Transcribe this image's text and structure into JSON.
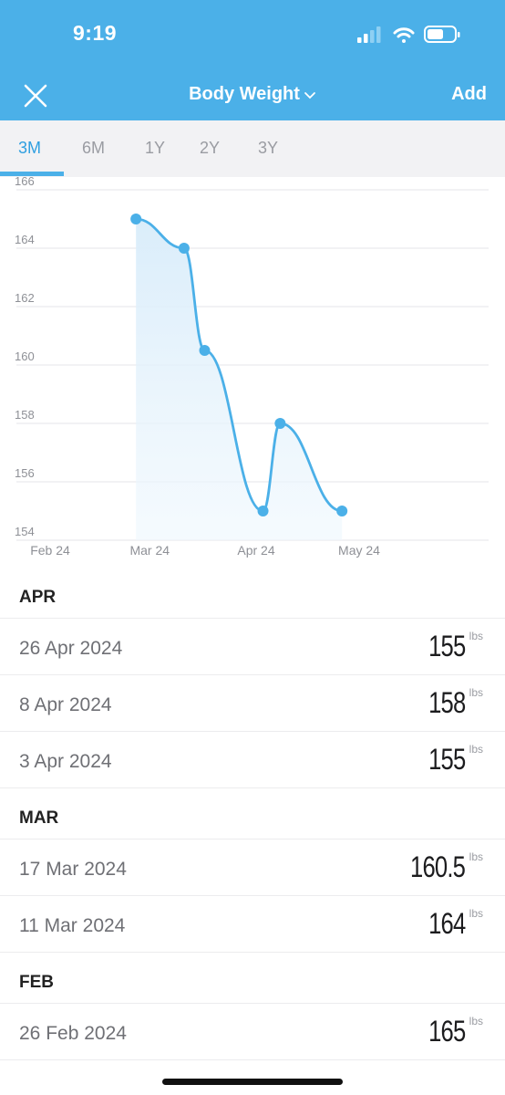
{
  "status_bar": {
    "time": "9:19"
  },
  "nav": {
    "title": "Body Weight",
    "add_label": "Add",
    "close_icon": "close-icon",
    "title_chevron": "chevron-down-icon"
  },
  "tabs": [
    {
      "label": "3M",
      "active": true
    },
    {
      "label": "6M",
      "active": false
    },
    {
      "label": "1Y",
      "active": false
    },
    {
      "label": "2Y",
      "active": false
    },
    {
      "label": "3Y",
      "active": false
    }
  ],
  "chart_data": {
    "type": "area",
    "x_ticks": [
      "Feb 24",
      "Mar 24",
      "Apr 24",
      "May 24"
    ],
    "y_ticks": [
      154,
      156,
      158,
      160,
      162,
      164,
      166
    ],
    "ylim": [
      154,
      166
    ],
    "grid": true,
    "color": "#4bb0e8",
    "points": [
      {
        "date": "26 Feb 2024",
        "value": 165
      },
      {
        "date": "11 Mar 2024",
        "value": 164
      },
      {
        "date": "17 Mar 2024",
        "value": 160.5
      },
      {
        "date": "3 Apr 2024",
        "value": 155
      },
      {
        "date": "8 Apr 2024",
        "value": 158
      },
      {
        "date": "26 Apr 2024",
        "value": 155
      }
    ]
  },
  "list": {
    "unit": "lbs",
    "sections": [
      {
        "month": "APR",
        "entries": [
          {
            "date": "26 Apr 2024",
            "value": "155"
          },
          {
            "date": "8 Apr 2024",
            "value": "158"
          },
          {
            "date": "3 Apr 2024",
            "value": "155"
          }
        ]
      },
      {
        "month": "MAR",
        "entries": [
          {
            "date": "17 Mar 2024",
            "value": "160.5"
          },
          {
            "date": "11 Mar 2024",
            "value": "164"
          }
        ]
      },
      {
        "month": "FEB",
        "entries": [
          {
            "date": "26 Feb 2024",
            "value": "165"
          }
        ]
      }
    ]
  }
}
